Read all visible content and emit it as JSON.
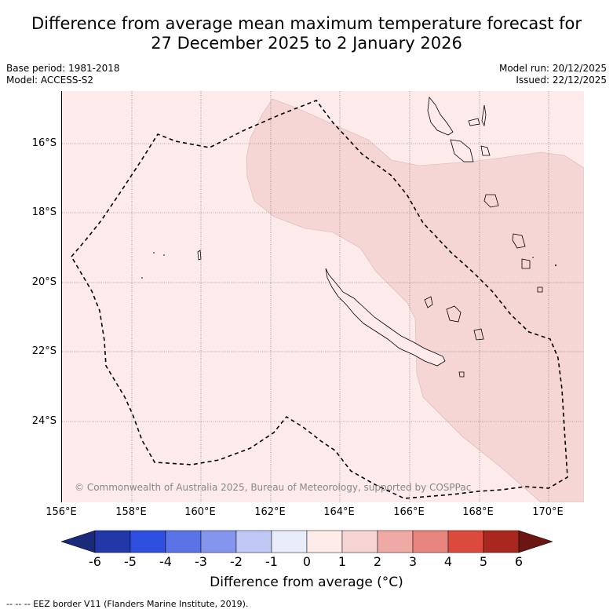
{
  "title": {
    "line1": "Difference from average mean maximum temperature forecast for",
    "line2": "27 December 2025 to 2 January 2026"
  },
  "meta": {
    "base_period": "Base period: 1981-2018",
    "model": "Model: ACCESS-S2",
    "model_run": "Model run: 20/12/2025",
    "issued": "Issued: 22/12/2025"
  },
  "axes": {
    "lat_labels": [
      "16°S",
      "18°S",
      "20°S",
      "22°S",
      "24°S"
    ],
    "lon_labels": [
      "156°E",
      "158°E",
      "160°E",
      "162°E",
      "164°E",
      "166°E",
      "168°E",
      "170°E"
    ]
  },
  "copyright": "© Commonwealth of Australia 2025, Bureau of Meteorology, supported by COSPPac",
  "colorbar": {
    "label": "Difference from average (°C)",
    "ticks": [
      "-6",
      "-5",
      "-4",
      "-3",
      "-2",
      "-1",
      "0",
      "1",
      "2",
      "3",
      "4",
      "5",
      "6"
    ],
    "colors": [
      "#1a2a7a",
      "#2238a8",
      "#2e4fe0",
      "#5a73e6",
      "#8395ec",
      "#c0c8f5",
      "#e8ecfb",
      "#fdecea",
      "#f6d4d4",
      "#efaaa5",
      "#e8857e",
      "#dc4a3e",
      "#aa2720",
      "#6b1612"
    ]
  },
  "footer": "--  --  -- EEZ border V11 (Flanders Marine Institute, 2019).",
  "legend_categories": [
    "0 to 1",
    "1 to 2"
  ]
}
